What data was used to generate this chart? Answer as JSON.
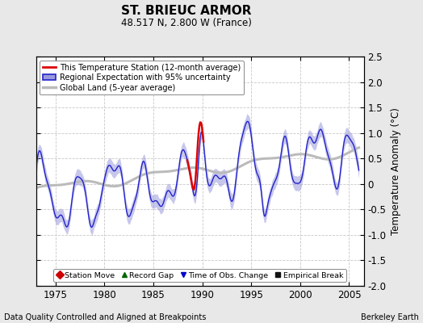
{
  "title": "ST. BRIEUC ARMOR",
  "subtitle": "48.517 N, 2.800 W (France)",
  "ylabel": "Temperature Anomaly (°C)",
  "footer_left": "Data Quality Controlled and Aligned at Breakpoints",
  "footer_right": "Berkeley Earth",
  "xlim": [
    1973.0,
    2006.5
  ],
  "ylim": [
    -2.0,
    2.5
  ],
  "yticks": [
    -2.0,
    -1.5,
    -1.0,
    -0.5,
    0.0,
    0.5,
    1.0,
    1.5,
    2.0,
    2.5
  ],
  "xticks": [
    1975,
    1980,
    1985,
    1990,
    1995,
    2000,
    2005
  ],
  "background_color": "#e8e8e8",
  "plot_bg_color": "#ffffff",
  "grid_color": "#c8c8c8",
  "regional_color": "#2222cc",
  "regional_fill_color": "#9999dd",
  "station_color": "#dd0000",
  "global_color": "#bbbbbb",
  "legend_labels": [
    "This Temperature Station (12-month average)",
    "Regional Expectation with 95% uncertainty",
    "Global Land (5-year average)"
  ],
  "marker_legend": [
    {
      "marker": "D",
      "color": "#cc0000",
      "label": "Station Move"
    },
    {
      "marker": "^",
      "color": "#006600",
      "label": "Record Gap"
    },
    {
      "marker": "v",
      "color": "#0000cc",
      "label": "Time of Obs. Change"
    },
    {
      "marker": "s",
      "color": "#111111",
      "label": "Empirical Break"
    }
  ]
}
